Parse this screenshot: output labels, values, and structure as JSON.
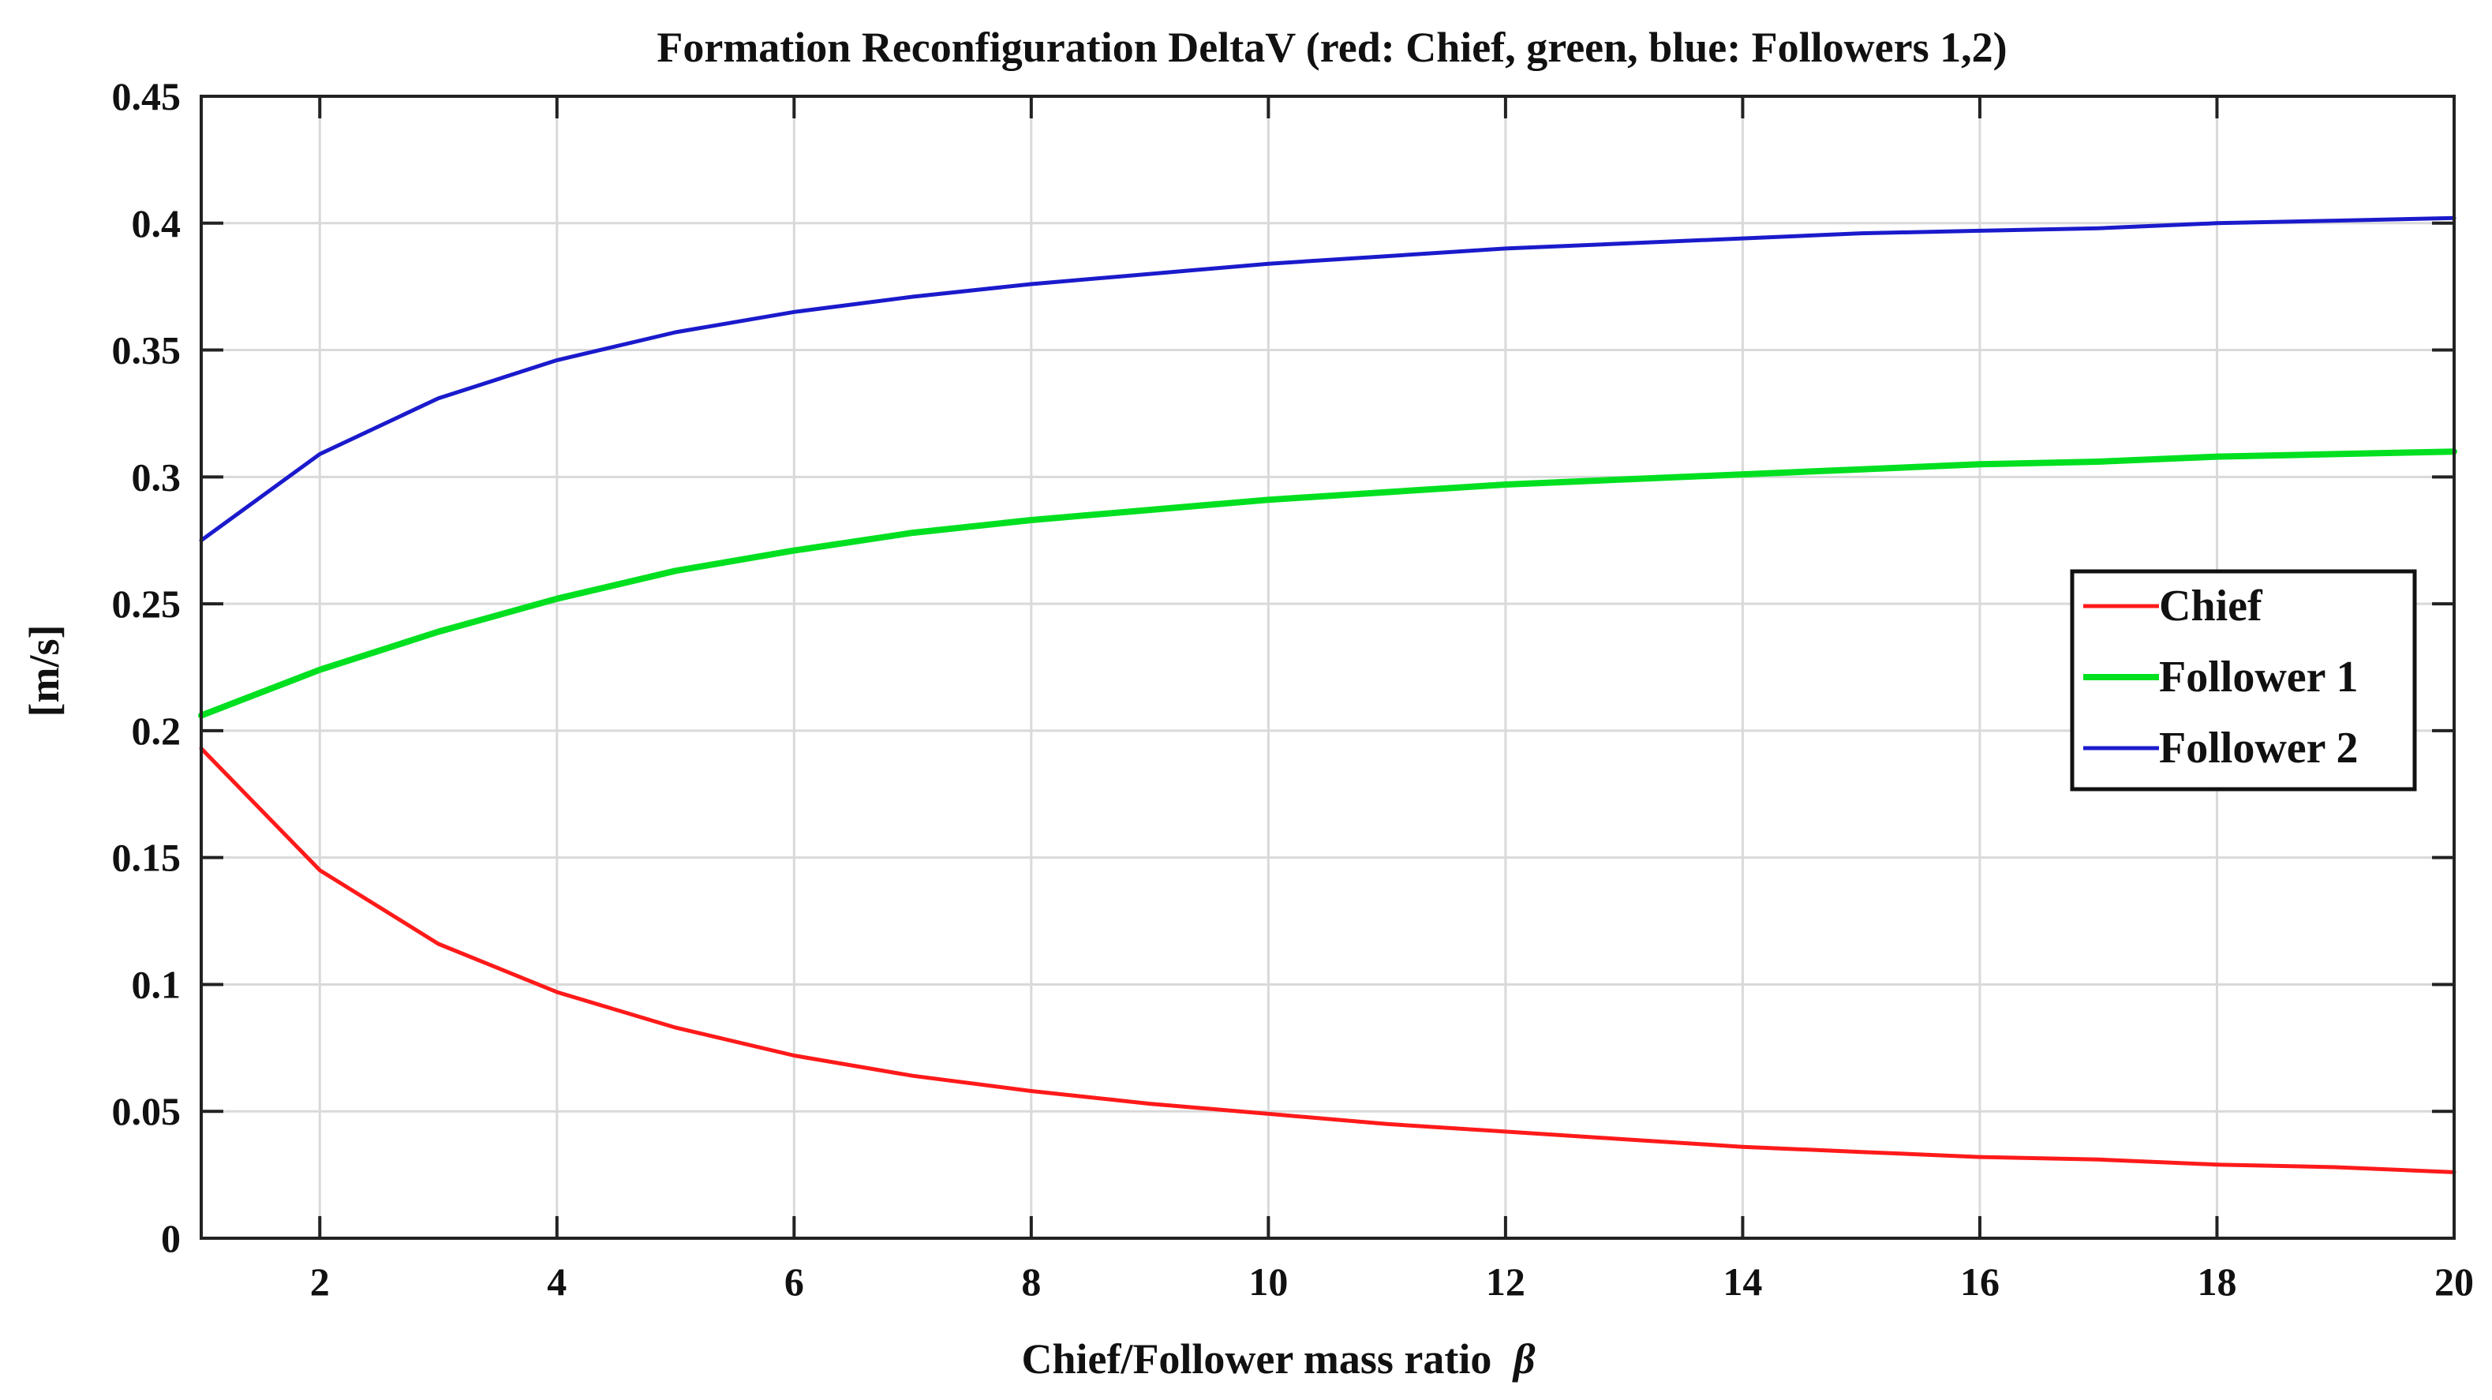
{
  "chart_data": {
    "type": "line",
    "title": "Formation Reconfiguration DeltaV (red: Chief, green, blue: Followers 1,2)",
    "xlabel": "Chief/Follower mass ratio",
    "xlabel_symbol": "β",
    "ylabel": "[m/s]",
    "xlim": [
      1,
      20
    ],
    "ylim": [
      0,
      0.45
    ],
    "xticks": [
      2,
      4,
      6,
      8,
      10,
      12,
      14,
      16,
      18,
      20
    ],
    "yticks": [
      0,
      0.05,
      0.1,
      0.15,
      0.2,
      0.25,
      0.3,
      0.35,
      0.4,
      0.45
    ],
    "ytick_labels": [
      "0",
      "0.05",
      "0.1",
      "0.15",
      "0.2",
      "0.25",
      "0.3",
      "0.35",
      "0.4",
      "0.45"
    ],
    "grid": true,
    "legend_position": "right",
    "x": [
      1,
      2,
      3,
      4,
      5,
      6,
      7,
      8,
      9,
      10,
      11,
      12,
      13,
      14,
      15,
      16,
      17,
      18,
      19,
      20
    ],
    "series": [
      {
        "name": "Chief",
        "color": "#ff1a1a",
        "values": [
          0.193,
          0.145,
          0.116,
          0.097,
          0.083,
          0.072,
          0.064,
          0.058,
          0.053,
          0.049,
          0.045,
          0.042,
          0.039,
          0.036,
          0.034,
          0.032,
          0.031,
          0.029,
          0.028,
          0.026
        ]
      },
      {
        "name": "Follower 1",
        "color": "#00e020",
        "values": [
          0.206,
          0.224,
          0.239,
          0.252,
          0.263,
          0.271,
          0.278,
          0.283,
          0.287,
          0.291,
          0.294,
          0.297,
          0.299,
          0.301,
          0.303,
          0.305,
          0.306,
          0.308,
          0.309,
          0.31
        ]
      },
      {
        "name": "Follower 2",
        "color": "#1a1acc",
        "values": [
          0.275,
          0.309,
          0.331,
          0.346,
          0.357,
          0.365,
          0.371,
          0.376,
          0.38,
          0.384,
          0.387,
          0.39,
          0.392,
          0.394,
          0.396,
          0.397,
          0.398,
          0.4,
          0.401,
          0.402
        ]
      }
    ]
  }
}
